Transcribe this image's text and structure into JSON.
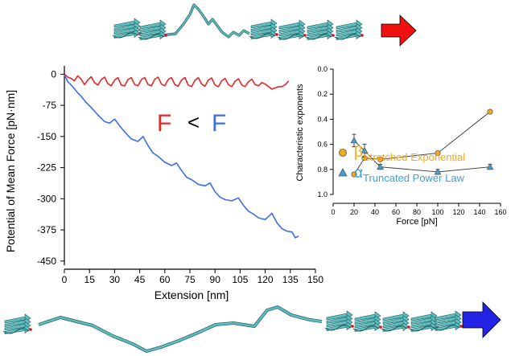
{
  "colors": {
    "red_curve": "#e8262a",
    "blue_curve": "#3a6ee8",
    "beta_marker": "#f3a91b",
    "alpha_marker": "#3ea0d6",
    "protein": "#5fbfc0",
    "arrow_top": "#f01010",
    "arrow_bottom": "#2323e6",
    "axis": "#000000"
  },
  "icons": {
    "top_arrow": "red-arrow-icon",
    "bottom_arrow": "blue-arrow-icon",
    "top_protein": "folded-protein-chain-icon",
    "bottom_protein": "unfolded-protein-chain-icon"
  },
  "comparison": {
    "left": "F",
    "operator": "<",
    "right": "F"
  },
  "chart_data": [
    {
      "type": "line",
      "xlabel": "Extension [nm]",
      "ylabel": "Potential of Mean Force [pN·nm]",
      "xlim": [
        0,
        150
      ],
      "ylim": [
        -460,
        20
      ],
      "x_ticks": [
        0,
        15,
        30,
        45,
        60,
        75,
        90,
        105,
        120,
        135,
        150
      ],
      "y_ticks": [
        0,
        -75,
        -150,
        -225,
        -300,
        -375,
        -450
      ],
      "grid": false,
      "series": [
        {
          "color": "#e8262a",
          "x": [
            0,
            2,
            4,
            6,
            8,
            10,
            12,
            14,
            16,
            18,
            20,
            22,
            24,
            26,
            28,
            30,
            32,
            34,
            36,
            38,
            40,
            42,
            44,
            46,
            48,
            50,
            52,
            54,
            56,
            58,
            60,
            62,
            64,
            66,
            68,
            70,
            72,
            74,
            76,
            78,
            80,
            82,
            84,
            86,
            88,
            90,
            92,
            94,
            96,
            98,
            100,
            102,
            104,
            106,
            108,
            110,
            112,
            114,
            116,
            118,
            120,
            122,
            124,
            126,
            128,
            130,
            132,
            134
          ],
          "y": [
            0,
            -7,
            -10,
            -16,
            -4,
            -12,
            -25,
            -14,
            -6,
            -20,
            -26,
            -13,
            -7,
            -23,
            -28,
            -14,
            -8,
            -26,
            -28,
            -13,
            -8,
            -25,
            -28,
            -13,
            -8,
            -25,
            -28,
            -12,
            -7,
            -24,
            -28,
            -13,
            -8,
            -25,
            -29,
            -14,
            -8,
            -26,
            -30,
            -15,
            -8,
            -24,
            -29,
            -14,
            -9,
            -26,
            -30,
            -16,
            -10,
            -25,
            -30,
            -17,
            -11,
            -26,
            -30,
            -18,
            -12,
            -25,
            -28,
            -20,
            -24,
            -30,
            -36,
            -33,
            -30,
            -30,
            -25,
            -16
          ]
        },
        {
          "color": "#3a6ee8",
          "x": [
            0,
            2,
            5,
            8,
            10,
            13,
            16,
            20,
            24,
            27,
            30,
            33,
            36,
            40,
            44,
            47,
            50,
            53,
            56,
            60,
            64,
            67,
            70,
            73,
            76,
            80,
            84,
            87,
            90,
            93,
            96,
            100,
            104,
            107,
            110,
            113,
            116,
            120,
            124,
            127,
            130,
            133,
            136,
            138,
            140
          ],
          "y": [
            -2,
            -18,
            -30,
            -45,
            -53,
            -68,
            -80,
            -98,
            -114,
            -118,
            -108,
            -124,
            -139,
            -156,
            -162,
            -150,
            -172,
            -190,
            -198,
            -212,
            -220,
            -214,
            -232,
            -248,
            -254,
            -265,
            -269,
            -262,
            -283,
            -296,
            -302,
            -305,
            -298,
            -316,
            -330,
            -337,
            -346,
            -350,
            -335,
            -358,
            -372,
            -378,
            -380,
            -394,
            -390
          ]
        }
      ]
    },
    {
      "type": "scatter",
      "xlabel": "Force [pN]",
      "ylabel": "Characteristic exponents",
      "xlim": [
        0,
        160
      ],
      "ylim": [
        0,
        1.0
      ],
      "x_ticks": [
        0,
        20,
        40,
        60,
        80,
        100,
        120,
        140,
        160
      ],
      "y_ticks": [
        0.0,
        0.2,
        0.4,
        0.6,
        0.8,
        1.0
      ],
      "y_tick_labels": [
        "0.0",
        "0.2",
        "0.4",
        "0.6",
        "0.8",
        "1.0"
      ],
      "grid": false,
      "legend": "bottom-right",
      "series": [
        {
          "name_main": "β",
          "name_sub": "Stretched Exponential",
          "marker": "circle",
          "color": "#f3a91b",
          "x": [
            20,
            30,
            45,
            100,
            150
          ],
          "y": [
            0.84,
            0.71,
            0.72,
            0.67,
            0.34
          ]
        },
        {
          "name_main": "α",
          "name_sub": "Truncated Power Law",
          "marker": "triangle",
          "color": "#3ea0d6",
          "x": [
            20,
            30,
            45,
            100,
            150
          ],
          "y": [
            0.57,
            0.65,
            0.78,
            0.82,
            0.78
          ],
          "err": [
            0.05,
            0.05,
            0.02,
            0.02,
            0.02
          ]
        }
      ]
    }
  ]
}
